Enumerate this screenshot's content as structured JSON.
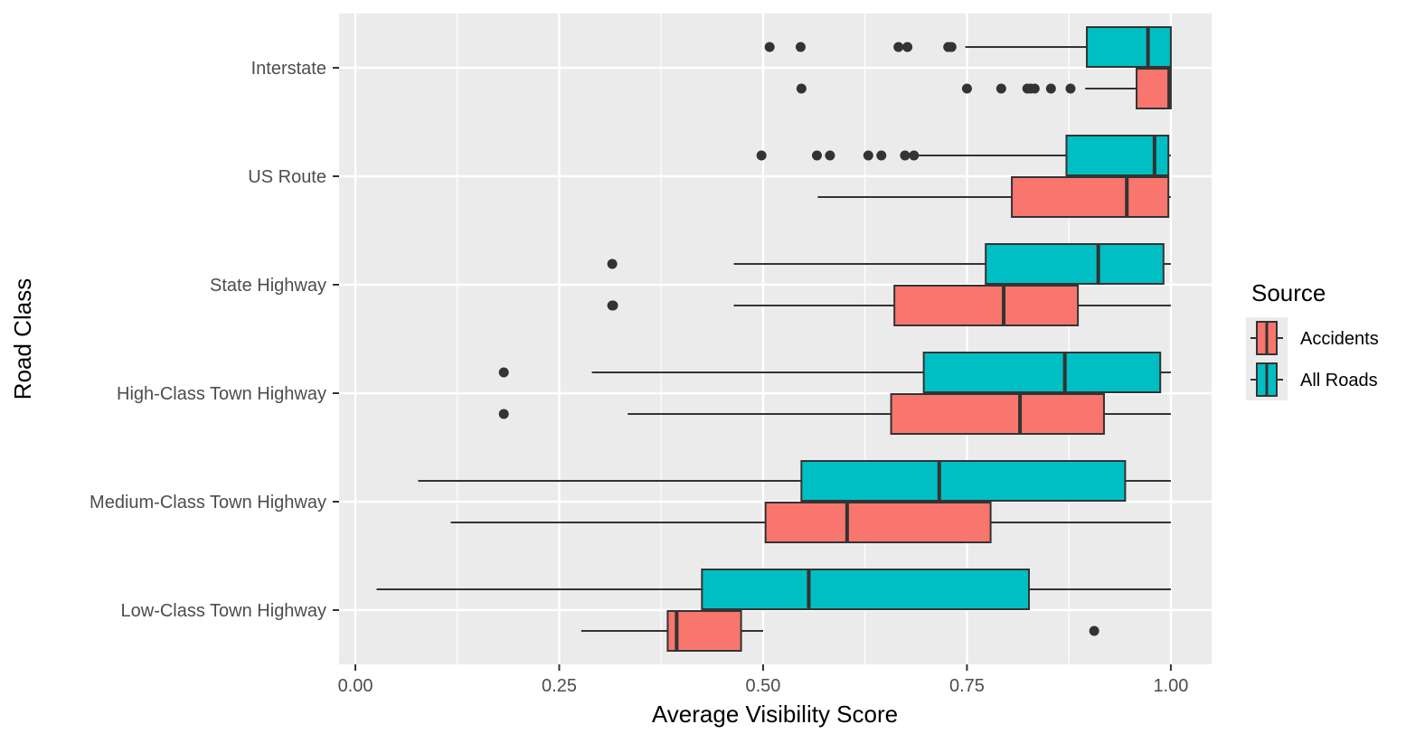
{
  "chart_data": {
    "type": "boxplot",
    "orientation": "horizontal",
    "title": "",
    "xlabel": "Average Visibility Score",
    "ylabel": "Road Class",
    "xlim": [
      -0.02,
      1.05
    ],
    "x_ticks": [
      0.0,
      0.25,
      0.5,
      0.75,
      1.0
    ],
    "x_tick_labels": [
      "0.00",
      "0.25",
      "0.50",
      "0.75",
      "1.00"
    ],
    "categories": [
      "Interstate",
      "US Route",
      "State Highway",
      "High-Class Town Highway",
      "Medium-Class Town Highway",
      "Low-Class Town Highway"
    ],
    "grid": true,
    "legend": {
      "title": "Source",
      "placement": "right",
      "entries": [
        {
          "name": "Accidents",
          "color": "#F8766D"
        },
        {
          "name": "All Roads",
          "color": "#00BFC4"
        }
      ]
    },
    "series": [
      {
        "name": "Accidents",
        "color": "#F8766D",
        "boxes": [
          {
            "category": "Interstate",
            "whisker_low": 0.895,
            "q1": 0.958,
            "median": 0.998,
            "q3": 1.0,
            "whisker_high": 1.0,
            "outliers": [
              0.547,
              0.75,
              0.792,
              0.824,
              0.828,
              0.833,
              0.853,
              0.877
            ]
          },
          {
            "category": "US Route",
            "whisker_low": 0.567,
            "q1": 0.805,
            "median": 0.946,
            "q3": 0.997,
            "whisker_high": 1.0,
            "outliers": []
          },
          {
            "category": "State Highway",
            "whisker_low": 0.464,
            "q1": 0.661,
            "median": 0.795,
            "q3": 0.886,
            "whisker_high": 1.0,
            "outliers": [
              0.315,
              0.316
            ]
          },
          {
            "category": "High-Class Town Highway",
            "whisker_low": 0.334,
            "q1": 0.657,
            "median": 0.815,
            "q3": 0.918,
            "whisker_high": 1.0,
            "outliers": [
              0.182
            ]
          },
          {
            "category": "Medium-Class Town Highway",
            "whisker_low": 0.117,
            "q1": 0.503,
            "median": 0.603,
            "q3": 0.779,
            "whisker_high": 1.0,
            "outliers": []
          },
          {
            "category": "Low-Class Town Highway",
            "whisker_low": 0.277,
            "q1": 0.383,
            "median": 0.394,
            "q3": 0.473,
            "whisker_high": 0.5,
            "outliers": [
              0.906
            ]
          }
        ]
      },
      {
        "name": "All Roads",
        "color": "#00BFC4",
        "boxes": [
          {
            "category": "Interstate",
            "whisker_low": 0.748,
            "q1": 0.897,
            "median": 0.972,
            "q3": 1.0,
            "whisker_high": 1.0,
            "outliers": [
              0.508,
              0.546,
              0.666,
              0.677,
              0.727,
              0.731
            ]
          },
          {
            "category": "US Route",
            "whisker_low": 0.69,
            "q1": 0.872,
            "median": 0.98,
            "q3": 0.997,
            "whisker_high": 1.0,
            "outliers": [
              0.498,
              0.566,
              0.582,
              0.629,
              0.645,
              0.674,
              0.685
            ]
          },
          {
            "category": "State Highway",
            "whisker_low": 0.464,
            "q1": 0.773,
            "median": 0.911,
            "q3": 0.991,
            "whisker_high": 1.0,
            "outliers": [
              0.315
            ]
          },
          {
            "category": "High-Class Town Highway",
            "whisker_low": 0.29,
            "q1": 0.697,
            "median": 0.87,
            "q3": 0.987,
            "whisker_high": 1.0,
            "outliers": [
              0.182
            ]
          },
          {
            "category": "Medium-Class Town Highway",
            "whisker_low": 0.077,
            "q1": 0.547,
            "median": 0.716,
            "q3": 0.944,
            "whisker_high": 1.0,
            "outliers": []
          },
          {
            "category": "Low-Class Town Highway",
            "whisker_low": 0.026,
            "q1": 0.425,
            "median": 0.556,
            "q3": 0.826,
            "whisker_high": 1.0,
            "outliers": []
          }
        ]
      }
    ]
  }
}
